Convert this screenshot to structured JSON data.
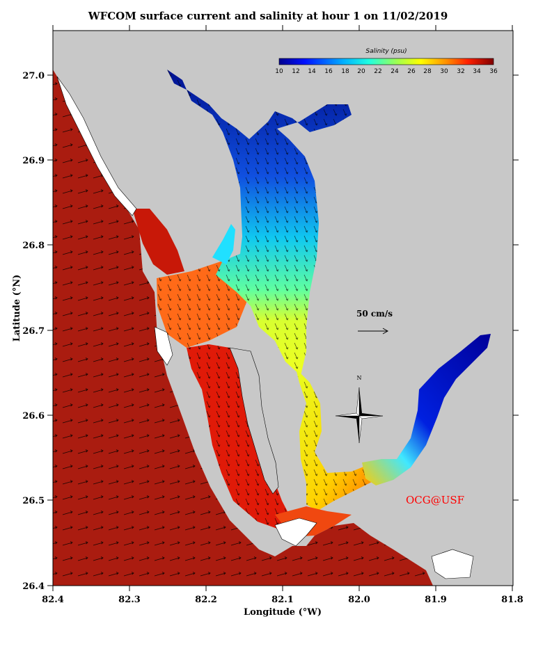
{
  "title": "WFCOM surface current and salinity at hour 1 on 11/02/2019",
  "xlabel": "Longitude (°W)",
  "ylabel": "Latitude (°N)",
  "x_ticks": [
    "82.4",
    "82.3",
    "82.2",
    "82.1",
    "82.0",
    "81.9",
    "81.8"
  ],
  "y_ticks": [
    "26.4",
    "26.5",
    "26.6",
    "26.7",
    "26.8",
    "26.9",
    "27.0"
  ],
  "colorbar": {
    "title": "Salinity (psu)",
    "labels": [
      "10",
      "12",
      "14",
      "16",
      "18",
      "20",
      "22",
      "24",
      "26",
      "28",
      "30",
      "32",
      "34",
      "36"
    ]
  },
  "scale_label": "50 cm/s",
  "compass_label": "N",
  "credit": "OCG@USF",
  "colors": {
    "land": "#c8c8c8",
    "ocean": "#aa1c10",
    "credit": "#ff0000"
  }
}
